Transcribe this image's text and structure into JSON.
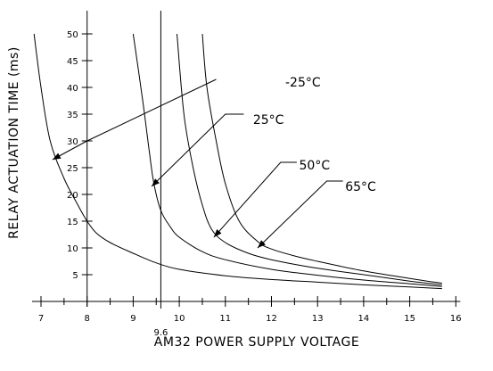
{
  "chart_data": {
    "type": "line",
    "title": "",
    "xlabel": "AM32 POWER SUPPLY VOLTAGE",
    "ylabel": "RELAY ACTUATION TIME  (ms)",
    "xlim": [
      7,
      16
    ],
    "ylim": [
      0,
      55
    ],
    "x_ticks": [
      7,
      8,
      9,
      10,
      11,
      12,
      13,
      14,
      15,
      16
    ],
    "x_tick_labels": [
      "7",
      "8",
      "9",
      "10",
      "11",
      "12",
      "13",
      "14",
      "15",
      "16"
    ],
    "y_ticks": [
      5,
      10,
      15,
      20,
      25,
      30,
      35,
      40,
      45,
      50
    ],
    "y_tick_labels": [
      "5",
      "10",
      "15",
      "20",
      "25",
      "30",
      "35",
      "40",
      "45",
      "50"
    ],
    "reference_line": {
      "x": 9.6,
      "label": "9.6"
    },
    "grid": false,
    "series": [
      {
        "name": "-25°C",
        "points": [
          [
            6.85,
            50
          ],
          [
            7.0,
            40
          ],
          [
            7.2,
            30
          ],
          [
            7.5,
            23
          ],
          [
            7.8,
            18
          ],
          [
            8.0,
            15
          ],
          [
            8.2,
            12.8
          ],
          [
            8.5,
            11
          ],
          [
            9.0,
            9
          ],
          [
            9.5,
            7.2
          ],
          [
            10,
            6
          ],
          [
            11,
            4.8
          ],
          [
            12,
            4.1
          ],
          [
            13,
            3.6
          ],
          [
            14,
            3.1
          ],
          [
            15,
            2.7
          ],
          [
            15.7,
            2.4
          ]
        ]
      },
      {
        "name": "25°C",
        "points": [
          [
            9.0,
            50
          ],
          [
            9.2,
            38
          ],
          [
            9.35,
            28
          ],
          [
            9.45,
            22
          ],
          [
            9.6,
            17
          ],
          [
            9.8,
            14
          ],
          [
            10,
            12
          ],
          [
            10.5,
            9.3
          ],
          [
            11,
            7.8
          ],
          [
            12,
            6.0
          ],
          [
            13,
            4.9
          ],
          [
            14,
            4.0
          ],
          [
            15,
            3.3
          ],
          [
            15.7,
            2.8
          ]
        ]
      },
      {
        "name": "50°C",
        "points": [
          [
            9.95,
            50
          ],
          [
            10.1,
            35
          ],
          [
            10.3,
            25
          ],
          [
            10.5,
            18
          ],
          [
            10.7,
            13.5
          ],
          [
            11,
            11
          ],
          [
            11.5,
            9
          ],
          [
            12,
            7.8
          ],
          [
            13,
            6.2
          ],
          [
            14,
            5.0
          ],
          [
            15,
            3.8
          ],
          [
            15.7,
            3.1
          ]
        ]
      },
      {
        "name": "65°C",
        "points": [
          [
            10.5,
            50
          ],
          [
            10.6,
            40
          ],
          [
            10.8,
            30
          ],
          [
            11.0,
            22
          ],
          [
            11.3,
            15
          ],
          [
            11.7,
            11.2
          ],
          [
            12,
            9.8
          ],
          [
            12.5,
            8.5
          ],
          [
            13,
            7.5
          ],
          [
            14,
            5.7
          ],
          [
            15,
            4.3
          ],
          [
            15.7,
            3.4
          ]
        ]
      }
    ],
    "annotations": [
      {
        "label": "-25°C",
        "series": 0,
        "arrow_to": [
          7.25,
          26.5
        ],
        "elbow": [
          8.0,
          30.0
        ],
        "anchor": [
          10.8,
          41.5
        ],
        "text_at": [
          12.3,
          41.0
        ]
      },
      {
        "label": "25°C",
        "series": 1,
        "arrow_to": [
          9.4,
          21.5
        ],
        "elbow": [
          11.0,
          35.0
        ],
        "anchor": [
          11.4,
          35.0
        ],
        "text_at": [
          11.6,
          34.0
        ]
      },
      {
        "label": "50°C",
        "series": 2,
        "arrow_to": [
          10.75,
          12.0
        ],
        "elbow": [
          12.2,
          26.0
        ],
        "anchor": [
          12.55,
          26.0
        ],
        "text_at": [
          12.6,
          25.5
        ]
      },
      {
        "label": "65°C",
        "series": 3,
        "arrow_to": [
          11.7,
          10.0
        ],
        "elbow": [
          13.2,
          22.5
        ],
        "anchor": [
          13.55,
          22.5
        ],
        "text_at": [
          13.6,
          21.5
        ]
      }
    ]
  }
}
